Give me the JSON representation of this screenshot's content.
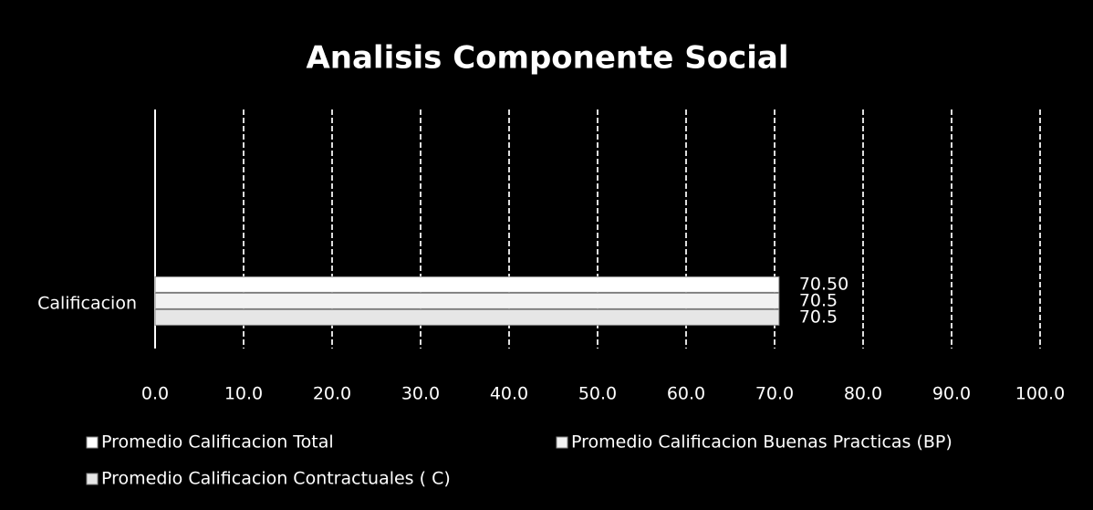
{
  "chart_data": {
    "type": "barh",
    "title": "Analisis Componente Social",
    "categories": [
      "Calificacion"
    ],
    "series": [
      {
        "name": "Promedio Calificacion Total",
        "color": "#ffffff",
        "values": [
          70.5
        ],
        "value_labels": [
          "70.50"
        ]
      },
      {
        "name": "Promedio Calificacion Buenas Practicas  (BP)",
        "color": "#f2f2f2",
        "values": [
          70.5
        ],
        "value_labels": [
          "70.5"
        ]
      },
      {
        "name": "Promedio Calificacion Contractuales ( C)",
        "color": "#e6e6e6",
        "values": [
          70.5
        ],
        "value_labels": [
          "70.5"
        ]
      }
    ],
    "xlim": [
      0,
      100
    ],
    "xticks": [
      {
        "value": 0,
        "label": "0.0"
      },
      {
        "value": 10,
        "label": "10.0"
      },
      {
        "value": 20,
        "label": "20.0"
      },
      {
        "value": 30,
        "label": "30.0"
      },
      {
        "value": 40,
        "label": "40.0"
      },
      {
        "value": 50,
        "label": "50.0"
      },
      {
        "value": 60,
        "label": "60.0"
      },
      {
        "value": 70,
        "label": "70.0"
      },
      {
        "value": 80,
        "label": "80.0"
      },
      {
        "value": 90,
        "label": "90.0"
      },
      {
        "value": 100,
        "label": "100.0"
      }
    ],
    "grid": true,
    "legend": "bottom"
  }
}
